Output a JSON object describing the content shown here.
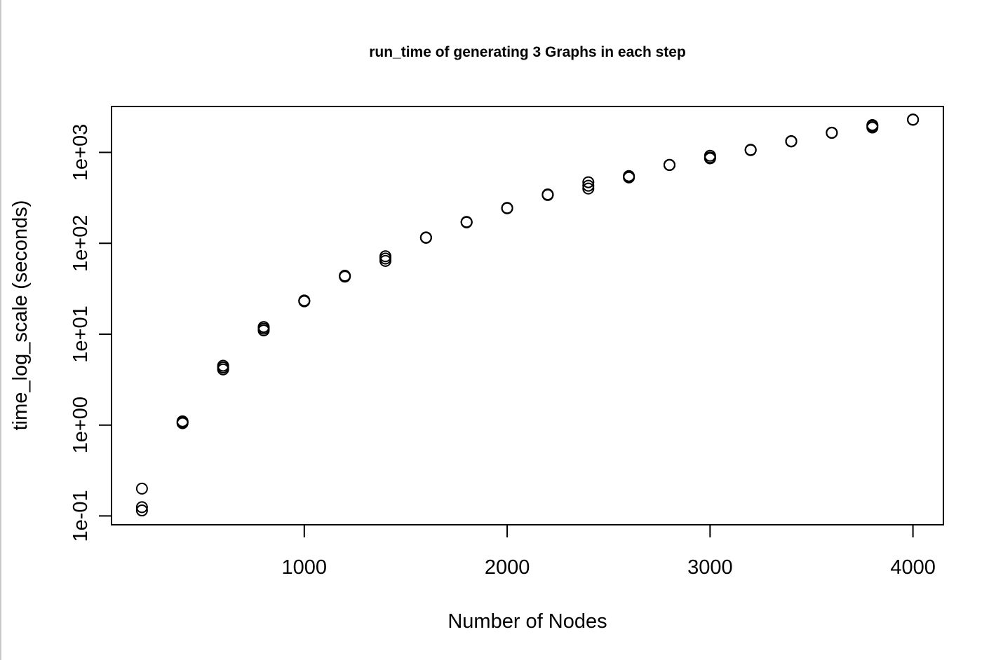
{
  "chart_data": {
    "type": "scatter",
    "title": "run_time of generating 3 Graphs in each step",
    "xlabel": "Number of Nodes",
    "ylabel": "time_log_scale (seconds)",
    "x_ticks": [
      1000,
      2000,
      3000,
      4000
    ],
    "x_tick_labels": [
      "1000",
      "2000",
      "3000",
      "4000"
    ],
    "y_scale": "log",
    "y_ticks": [
      0.1,
      1,
      10,
      100,
      1000
    ],
    "y_tick_labels": [
      "1e-01",
      "1e+00",
      "1e+01",
      "1e+02",
      "1e+03"
    ],
    "xlim": [
      50,
      4150
    ],
    "ylim": [
      0.08,
      3200
    ],
    "grid": false,
    "marker": "open-circle",
    "color": "#000000",
    "points": [
      {
        "x": 200,
        "y": 0.2
      },
      {
        "x": 200,
        "y": 0.125
      },
      {
        "x": 200,
        "y": 0.115
      },
      {
        "x": 400,
        "y": 1.1
      },
      {
        "x": 400,
        "y": 1.05
      },
      {
        "x": 400,
        "y": 1.08
      },
      {
        "x": 600,
        "y": 4.5
      },
      {
        "x": 600,
        "y": 4.1
      },
      {
        "x": 600,
        "y": 4.3
      },
      {
        "x": 800,
        "y": 12.0
      },
      {
        "x": 800,
        "y": 11.0
      },
      {
        "x": 800,
        "y": 11.5
      },
      {
        "x": 1000,
        "y": 23.5
      },
      {
        "x": 1000,
        "y": 23.0
      },
      {
        "x": 1000,
        "y": 23.2
      },
      {
        "x": 1200,
        "y": 44.0
      },
      {
        "x": 1200,
        "y": 43.0
      },
      {
        "x": 1200,
        "y": 43.5
      },
      {
        "x": 1400,
        "y": 72.0
      },
      {
        "x": 1400,
        "y": 68.0
      },
      {
        "x": 1400,
        "y": 64.0
      },
      {
        "x": 1600,
        "y": 116.0
      },
      {
        "x": 1600,
        "y": 115.0
      },
      {
        "x": 1600,
        "y": 115.5
      },
      {
        "x": 1800,
        "y": 172.0
      },
      {
        "x": 1800,
        "y": 170.0
      },
      {
        "x": 1800,
        "y": 171.0
      },
      {
        "x": 2000,
        "y": 245.0
      },
      {
        "x": 2000,
        "y": 243.0
      },
      {
        "x": 2000,
        "y": 244.0
      },
      {
        "x": 2200,
        "y": 345.0
      },
      {
        "x": 2200,
        "y": 340.0
      },
      {
        "x": 2200,
        "y": 342.0
      },
      {
        "x": 2400,
        "y": 470.0
      },
      {
        "x": 2400,
        "y": 430.0
      },
      {
        "x": 2400,
        "y": 400.0
      },
      {
        "x": 2600,
        "y": 550.0
      },
      {
        "x": 2600,
        "y": 530.0
      },
      {
        "x": 2600,
        "y": 540.0
      },
      {
        "x": 2800,
        "y": 730.0
      },
      {
        "x": 2800,
        "y": 725.0
      },
      {
        "x": 2800,
        "y": 728.0
      },
      {
        "x": 3000,
        "y": 920.0
      },
      {
        "x": 3000,
        "y": 860.0
      },
      {
        "x": 3000,
        "y": 880.0
      },
      {
        "x": 3200,
        "y": 1070.0
      },
      {
        "x": 3200,
        "y": 1060.0
      },
      {
        "x": 3200,
        "y": 1065.0
      },
      {
        "x": 3400,
        "y": 1330.0
      },
      {
        "x": 3400,
        "y": 1320.0
      },
      {
        "x": 3400,
        "y": 1325.0
      },
      {
        "x": 3600,
        "y": 1650.0
      },
      {
        "x": 3600,
        "y": 1640.0
      },
      {
        "x": 3600,
        "y": 1645.0
      },
      {
        "x": 3800,
        "y": 2000.0
      },
      {
        "x": 3800,
        "y": 1880.0
      },
      {
        "x": 3800,
        "y": 1950.0
      },
      {
        "x": 4000,
        "y": 2300.0
      },
      {
        "x": 4000,
        "y": 2290.0
      },
      {
        "x": 4000,
        "y": 2295.0
      }
    ]
  }
}
